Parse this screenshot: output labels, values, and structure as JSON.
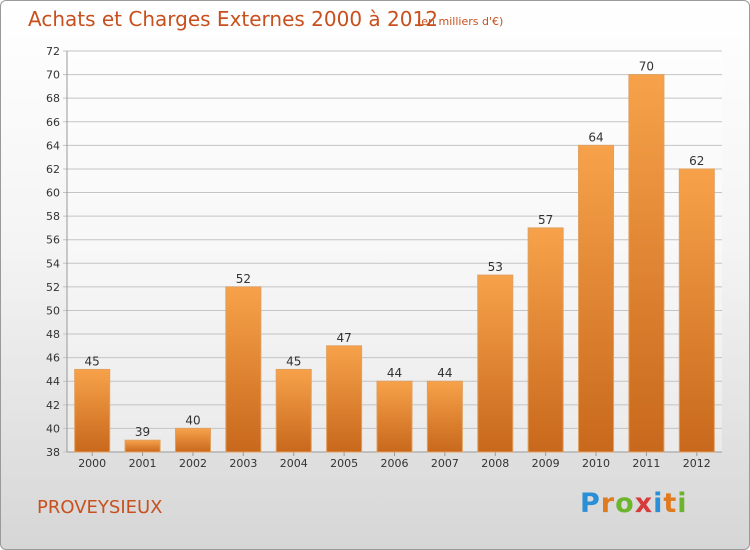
{
  "header": {
    "title": "Achats et Charges Externes 2000 à 2012",
    "subtitle": "(en milliers d'€)"
  },
  "footer": {
    "town": "PROVEYSIEUX",
    "logo": {
      "letters": [
        "P",
        "r",
        "o",
        "x",
        "i",
        "t",
        "i"
      ],
      "colors": [
        "#2a8fd6",
        "#e07a1e",
        "#6cb52a",
        "#d83b3b",
        "#2a8fd6",
        "#e07a1e",
        "#6cb52a"
      ]
    }
  },
  "chart_data": {
    "type": "bar",
    "categories": [
      "2000",
      "2001",
      "2002",
      "2003",
      "2004",
      "2005",
      "2006",
      "2007",
      "2008",
      "2009",
      "2010",
      "2011",
      "2012"
    ],
    "values": [
      45,
      39,
      40,
      52,
      45,
      47,
      44,
      44,
      53,
      57,
      64,
      70,
      62
    ],
    "ylim": [
      38,
      72
    ],
    "yticks": [
      38,
      40,
      42,
      44,
      46,
      48,
      50,
      52,
      54,
      56,
      58,
      60,
      62,
      64,
      66,
      68,
      70,
      72
    ],
    "grid": true,
    "bar_color_light": "#f7a24a",
    "bar_color_dark": "#c8681c",
    "data_labels": true
  }
}
